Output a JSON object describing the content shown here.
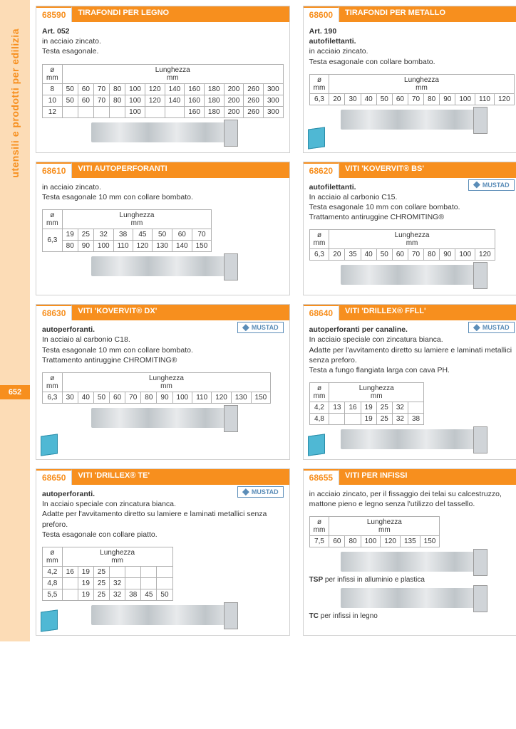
{
  "sidebar": {
    "category": "utensili e prodotti per edilizia",
    "page": "652"
  },
  "cards": [
    {
      "code": "68590",
      "title": "TIRAFONDI PER LEGNO",
      "desc": "<b>Art. 052</b><br>in acciaio zincato.<br>Testa esagonale.",
      "table": {
        "diam_label": "ø<br>mm",
        "len_label": "Lunghezza<br>mm",
        "rows": [
          [
            "8",
            "50",
            "60",
            "70",
            "80",
            "100",
            "120",
            "140",
            "160",
            "180",
            "200",
            "260",
            "300"
          ],
          [
            "10",
            "50",
            "60",
            "70",
            "80",
            "100",
            "120",
            "140",
            "160",
            "180",
            "200",
            "260",
            "300"
          ],
          [
            "12",
            "",
            "",
            "",
            "",
            "100",
            "",
            "",
            "160",
            "180",
            "200",
            "260",
            "300"
          ]
        ]
      },
      "brand": null,
      "cube": false
    },
    {
      "code": "68600",
      "title": "TIRAFONDI PER METALLO",
      "desc": "<b>Art. 190</b><br><b>autofilettanti.</b><br>in acciaio zincato.<br>Testa esagonale con collare bombato.",
      "table": {
        "diam_label": "ø<br>mm",
        "len_label": "Lunghezza<br>mm",
        "rows": [
          [
            "6,3",
            "20",
            "30",
            "40",
            "50",
            "60",
            "70",
            "80",
            "90",
            "100",
            "110",
            "120"
          ]
        ]
      },
      "brand": null,
      "cube": true
    },
    {
      "code": "68610",
      "title": "VITI AUTOPERFORANTI",
      "desc": "in acciaio zincato.<br>Testa esagonale 10 mm con collare bombato.",
      "table": {
        "diam_label": "ø<br>mm",
        "len_label": "Lunghezza<br>mm",
        "rows": [
          [
            "6,3",
            "19",
            "25",
            "32",
            "38",
            "45",
            "50",
            "60",
            "70"
          ],
          [
            "",
            "80",
            "90",
            "100",
            "110",
            "120",
            "130",
            "140",
            "150"
          ]
        ],
        "rowspan_first": true
      },
      "brand": null,
      "cube": false
    },
    {
      "code": "68620",
      "title": "VITI 'KOVERVIT® BS'",
      "desc": "<b>autofilettanti.</b><br>In acciaio al carbonio C15.<br>Testa esagonale 10 mm con collare bombato.<br>Trattamento antiruggine CHROMITING®",
      "table": {
        "diam_label": "ø<br>mm",
        "len_label": "Lunghezza<br>mm",
        "rows": [
          [
            "6,3",
            "20",
            "35",
            "40",
            "50",
            "60",
            "70",
            "80",
            "90",
            "100",
            "120"
          ]
        ]
      },
      "brand": "MUSTAD",
      "cube": false
    },
    {
      "code": "68630",
      "title": "VITI 'KOVERVIT® DX'",
      "desc": "<b>autoperforanti.</b><br>In acciaio al carbonio C18.<br>Testa esagonale 10 mm con collare bombato.<br>Trattamento antiruggine CHROMITING®",
      "table": {
        "diam_label": "ø<br>mm",
        "len_label": "Lunghezza<br>mm",
        "rows": [
          [
            "6,3",
            "30",
            "40",
            "50",
            "60",
            "70",
            "80",
            "90",
            "100",
            "110",
            "120",
            "130",
            "150"
          ]
        ]
      },
      "brand": "MUSTAD",
      "cube": true
    },
    {
      "code": "68640",
      "title": "VITI 'DRILLEX® FFLL'",
      "desc": "<b>autoperforanti per canaline.</b><br>In acciaio speciale con zincatura bianca.<br>Adatte per l'avvitamento diretto su lamiere e laminati metallici senza preforo.<br>Testa a fungo flangiata larga con cava PH.",
      "table": {
        "diam_label": "ø<br>mm",
        "len_label": "Lunghezza<br>mm",
        "rows": [
          [
            "4,2",
            "13",
            "16",
            "19",
            "25",
            "32",
            ""
          ],
          [
            "4,8",
            "",
            "",
            "19",
            "25",
            "32",
            "38"
          ]
        ]
      },
      "brand": "MUSTAD",
      "cube": true
    },
    {
      "code": "68650",
      "title": "VITI 'DRILLEX® TE'",
      "desc": "<b>autoperforanti.</b><br>In acciaio speciale con zincatura bianca.<br>Adatte per l'avvitamento diretto su lamiere e laminati metallici senza preforo.<br>Testa esagonale con collare piatto.",
      "table": {
        "diam_label": "ø<br>mm",
        "len_label": "Lunghezza<br>mm",
        "rows": [
          [
            "4,2",
            "16",
            "19",
            "25",
            "",
            "",
            "",
            ""
          ],
          [
            "4,8",
            "",
            "19",
            "25",
            "32",
            "",
            "",
            ""
          ],
          [
            "5,5",
            "",
            "19",
            "25",
            "32",
            "38",
            "45",
            "50"
          ]
        ]
      },
      "brand": "MUSTAD",
      "cube": true
    },
    {
      "code": "68655",
      "title": "VITI PER INFISSI",
      "desc": "in acciaio zincato, per il fissaggio dei telai su calcestruzzo, mattone pieno e legno senza l'utilizzo del tassello.",
      "table": {
        "diam_label": "ø<br>mm",
        "len_label": "Lunghezza<br>mm",
        "rows": [
          [
            "7,5",
            "60",
            "80",
            "100",
            "120",
            "135",
            "150"
          ]
        ]
      },
      "brand": null,
      "cube": false,
      "notes": [
        "<b>TSP</b> per infissi in alluminio e plastica",
        "<b>TC</b> per infissi in legno"
      ]
    }
  ]
}
